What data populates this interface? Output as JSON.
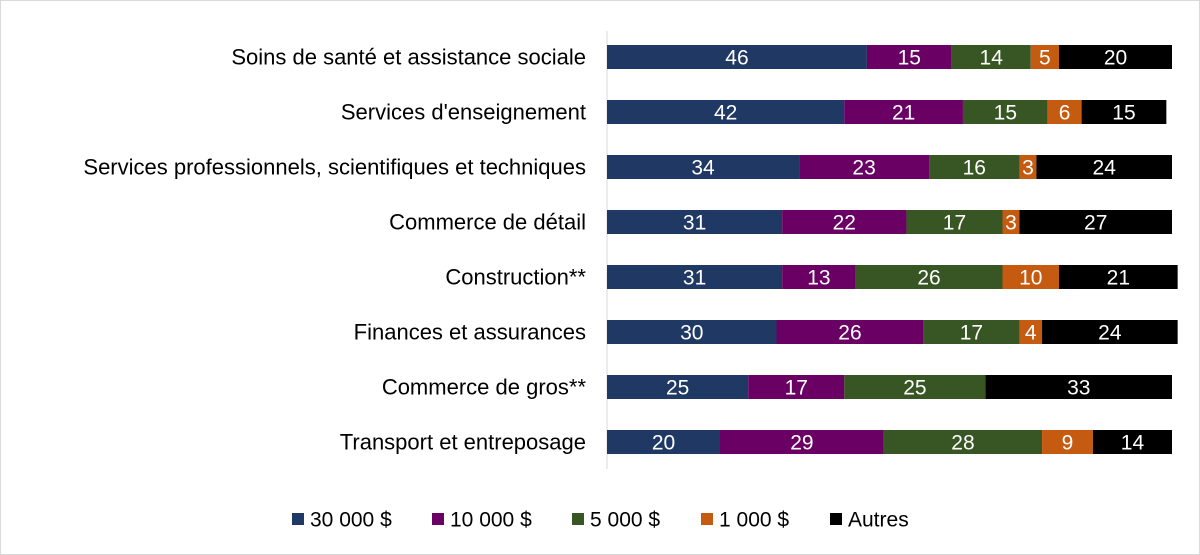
{
  "chart_data": {
    "type": "bar",
    "orientation": "horizontal",
    "stacked": true,
    "categories": [
      "Soins de santé et assistance sociale",
      "Services d'enseignement",
      "Services professionnels, scientifiques et techniques",
      "Commerce de détail",
      "Construction**",
      "Finances et assurances",
      "Commerce de gros**",
      "Transport et entreposage"
    ],
    "series": [
      {
        "name": "30 000 $",
        "color": "#203864",
        "values": [
          46,
          42,
          34,
          31,
          31,
          30,
          25,
          20
        ]
      },
      {
        "name": "10 000 $",
        "color": "#6a0064",
        "values": [
          15,
          21,
          23,
          22,
          13,
          26,
          17,
          29
        ]
      },
      {
        "name": "5 000 $",
        "color": "#375623",
        "values": [
          14,
          15,
          16,
          17,
          26,
          17,
          25,
          28
        ]
      },
      {
        "name": "1 000 $",
        "color": "#c55a11",
        "values": [
          5,
          6,
          3,
          3,
          10,
          4,
          null,
          9
        ]
      },
      {
        "name": "Autres",
        "color": "#000000",
        "values": [
          20,
          15,
          24,
          27,
          21,
          24,
          33,
          14
        ]
      }
    ],
    "xlim": [
      0,
      100
    ],
    "value_label_color": "#ffffff",
    "legend_position": "bottom",
    "title": "",
    "xlabel": "",
    "ylabel": ""
  }
}
